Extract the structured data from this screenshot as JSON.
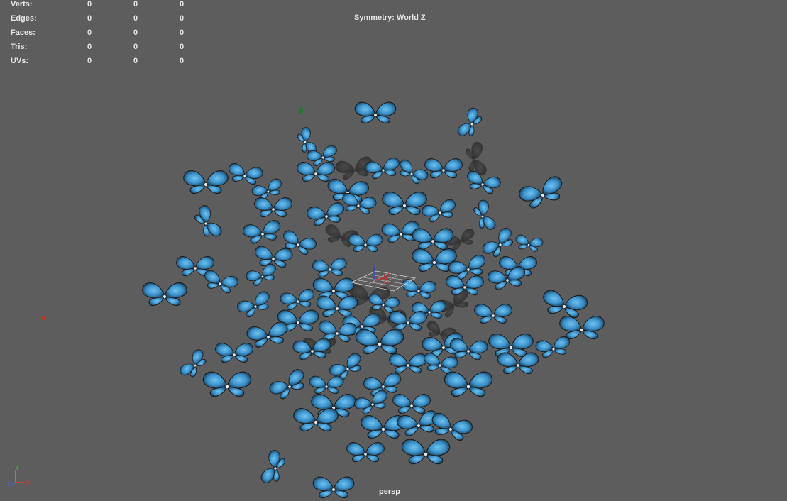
{
  "hud": {
    "rows": [
      {
        "label": "Verts:",
        "values": [
          "0",
          "0",
          "0"
        ]
      },
      {
        "label": "Edges:",
        "values": [
          "0",
          "0",
          "0"
        ]
      },
      {
        "label": "Faces:",
        "values": [
          "0",
          "0",
          "0"
        ]
      },
      {
        "label": "Tris:",
        "values": [
          "0",
          "0",
          "0"
        ]
      },
      {
        "label": "UVs:",
        "values": [
          "0",
          "0",
          "0"
        ]
      }
    ],
    "symmetry": "Symmetry: World Z"
  },
  "viewport": {
    "camera": "persp",
    "background_color": "#5d5d5d",
    "object_color": "#3a8fc8",
    "shadow_color": "#2e2e2e"
  },
  "axis_gizmo": {
    "x_color": "#e03a2a",
    "y_color": "#3ecb3e",
    "z_color": "#3a6ae0",
    "x_label": "X",
    "y_label": "Y",
    "z_label": "Z"
  }
}
